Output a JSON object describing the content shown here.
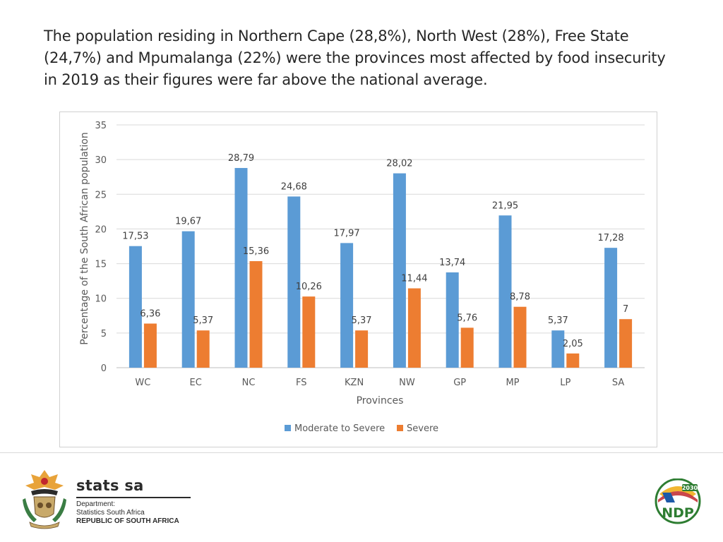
{
  "headline": "The population residing in Northern Cape (28,8%), North West (28%), Free State (24,7%) and Mpumalanga (22%) were the provinces most affected by food insecurity in 2019 as their figures were far above the national average.",
  "chart_data": {
    "type": "bar",
    "title": "",
    "xlabel": "Provinces",
    "ylabel": "Percentage of the South African population",
    "ylim": [
      0,
      35
    ],
    "yticks": [
      0,
      5,
      10,
      15,
      20,
      25,
      30,
      35
    ],
    "grid": true,
    "legend_position": "bottom",
    "categories": [
      "WC",
      "EC",
      "NC",
      "FS",
      "KZN",
      "NW",
      "GP",
      "MP",
      "LP",
      "SA"
    ],
    "series": [
      {
        "name": "Moderate to Severe",
        "color": "#5b9bd5",
        "values": [
          17.53,
          19.67,
          28.79,
          24.68,
          17.97,
          28.02,
          13.74,
          21.95,
          5.37,
          17.28
        ],
        "labels": [
          "17,53",
          "19,67",
          "28,79",
          "24,68",
          "17,97",
          "28,02",
          "13,74",
          "21,95",
          "5,37",
          "17,28"
        ]
      },
      {
        "name": "Severe",
        "color": "#ed7d31",
        "values": [
          6.36,
          5.37,
          15.36,
          10.26,
          5.37,
          11.44,
          5.76,
          8.78,
          2.05,
          7
        ],
        "labels": [
          "6,36",
          "5,37",
          "15,36",
          "10,26",
          "5,37",
          "11,44",
          "5,76",
          "8,78",
          "2,05",
          "7"
        ]
      }
    ]
  },
  "footer": {
    "brand_name": "stats sa",
    "department_line": "Department:",
    "org_line": "Statistics South Africa",
    "country_line": "REPUBLIC OF SOUTH AFRICA",
    "coat_of_arms_icon": "coat-of-arms-icon",
    "ndp_logo": {
      "icon": "ndp-logo-icon",
      "text": "NDP",
      "year": "2030"
    }
  }
}
